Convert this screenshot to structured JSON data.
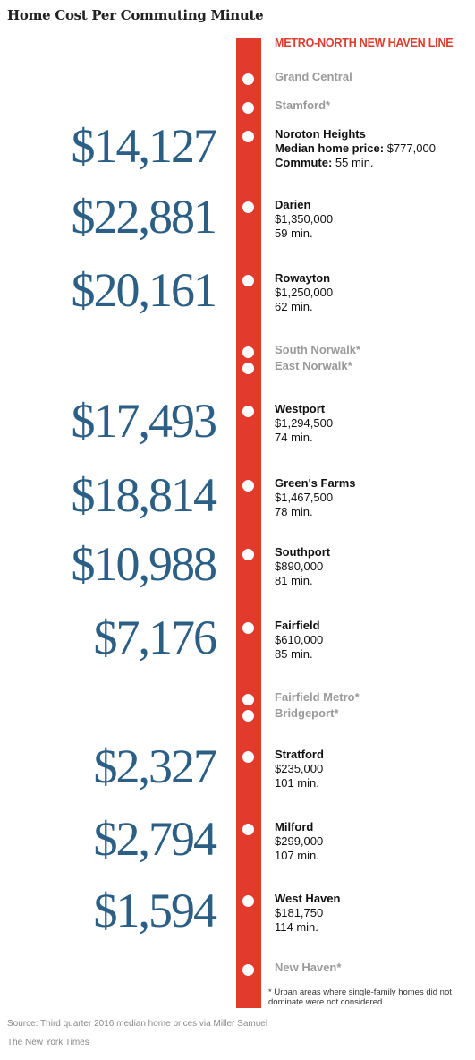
{
  "chart_data": {
    "type": "table",
    "title": "Home Cost Per Commuting Minute",
    "line_name": "METRO-NORTH NEW HAVEN LINE",
    "price_label": "Median home price:",
    "commute_label": "Commute:",
    "stations": [
      {
        "name": "Grand Central",
        "excluded": false
      },
      {
        "name": "Stamford*",
        "excluded": true
      },
      {
        "name": "Noroton Heights",
        "cost_per_minute": "$14,127",
        "price": "$777,000",
        "commute": "55 min."
      },
      {
        "name": "Darien",
        "cost_per_minute": "$22,881",
        "price": "$1,350,000",
        "commute": "59 min."
      },
      {
        "name": "Rowayton",
        "cost_per_minute": "$20,161",
        "price": "$1,250,000",
        "commute": "62 min."
      },
      {
        "name": "South Norwalk*",
        "excluded": true
      },
      {
        "name": "East Norwalk*",
        "excluded": true
      },
      {
        "name": "Westport",
        "cost_per_minute": "$17,493",
        "price": "$1,294,500",
        "commute": "74 min."
      },
      {
        "name": "Green's Farms",
        "cost_per_minute": "$18,814",
        "price": "$1,467,500",
        "commute": "78 min."
      },
      {
        "name": "Southport",
        "cost_per_minute": "$10,988",
        "price": "$890,000",
        "commute": "81 min."
      },
      {
        "name": "Fairfield",
        "cost_per_minute": "$7,176",
        "price": "$610,000",
        "commute": "85 min."
      },
      {
        "name": "Fairfield Metro*",
        "excluded": true
      },
      {
        "name": "Bridgeport*",
        "excluded": true
      },
      {
        "name": "Stratford",
        "cost_per_minute": "$2,327",
        "price": "$235,000",
        "commute": "101 min."
      },
      {
        "name": "Milford",
        "cost_per_minute": "$2,794",
        "price": "$299,000",
        "commute": "107 min."
      },
      {
        "name": "West Haven",
        "cost_per_minute": "$1,594",
        "price": "$181,750",
        "commute": "114 min."
      },
      {
        "name": "New Haven*",
        "excluded": true
      }
    ],
    "footnote": "* Urban areas where single-family homes did not dominate were not considered.",
    "source": "Source: Third quarter 2016 median home prices via Miller Samuel",
    "credit": "The New York Times",
    "colors": {
      "line": "#e23a2c",
      "value": "#2b5f86",
      "excluded": "#9a9a9a"
    }
  }
}
